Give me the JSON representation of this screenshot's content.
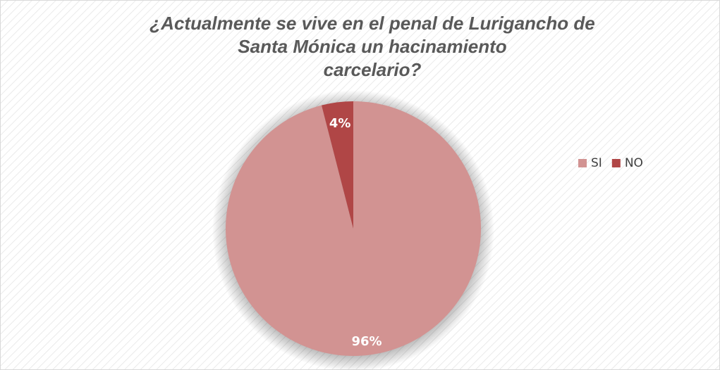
{
  "chart_data": {
    "type": "pie",
    "title": [
      "¿Actualmente se vive en el penal de Lurigancho de",
      "Santa Mónica un hacinamiento",
      "carcelario?"
    ],
    "categories": [
      "SI",
      "NO"
    ],
    "values": [
      96,
      4
    ],
    "value_labels": [
      "96%",
      "4%"
    ],
    "colors": [
      "#d29392",
      "#b04646"
    ],
    "legend": "right"
  }
}
